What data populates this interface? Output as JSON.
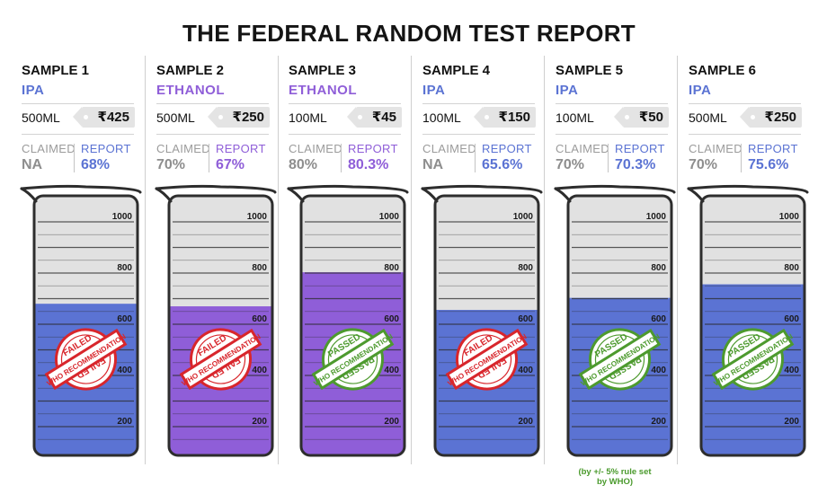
{
  "title": "THE FEDERAL RANDOM TEST REPORT",
  "labels": {
    "claimed": "CLAIMED",
    "report": "REPORT"
  },
  "stamp_text": {
    "failed": "FAILED",
    "passed": "PASSED",
    "who": "WHO RECOMMENDATION"
  },
  "scale_labels": [
    "1000",
    "800",
    "600",
    "400",
    "200"
  ],
  "colors": {
    "ipa": "#5b73d3",
    "ethanol": "#8f5ed8",
    "failed": "#d8262c",
    "passed": "#4d9a2e",
    "note": "#4a9a2c"
  },
  "samples": [
    {
      "label": "SAMPLE 1",
      "substance": "IPA",
      "substance_key": "ipa",
      "volume": "500ML",
      "price": "₹425",
      "claimed": "NA",
      "report": "68%",
      "status": "failed",
      "fill_level_ml": 680
    },
    {
      "label": "SAMPLE 2",
      "substance": "ETHANOL",
      "substance_key": "ethanol",
      "volume": "500ML",
      "price": "₹250",
      "claimed": "70%",
      "report": "67%",
      "status": "failed",
      "fill_level_ml": 670
    },
    {
      "label": "SAMPLE 3",
      "substance": "ETHANOL",
      "substance_key": "ethanol",
      "volume": "100ML",
      "price": "₹45",
      "claimed": "80%",
      "report": "80.3%",
      "status": "passed",
      "fill_level_ml": 803
    },
    {
      "label": "SAMPLE 4",
      "substance": "IPA",
      "substance_key": "ipa",
      "volume": "100ML",
      "price": "₹150",
      "claimed": "NA",
      "report": "65.6%",
      "status": "failed",
      "fill_level_ml": 656
    },
    {
      "label": "SAMPLE 5",
      "substance": "IPA",
      "substance_key": "ipa",
      "volume": "100ML",
      "price": "₹50",
      "claimed": "70%",
      "report": "70.3%",
      "status": "passed",
      "fill_level_ml": 703,
      "note": [
        "(by +/- 5% rule set",
        "by WHO)"
      ]
    },
    {
      "label": "SAMPLE 6",
      "substance": "IPA",
      "substance_key": "ipa",
      "volume": "500ML",
      "price": "₹250",
      "claimed": "70%",
      "report": "75.6%",
      "status": "passed",
      "fill_level_ml": 756
    }
  ]
}
